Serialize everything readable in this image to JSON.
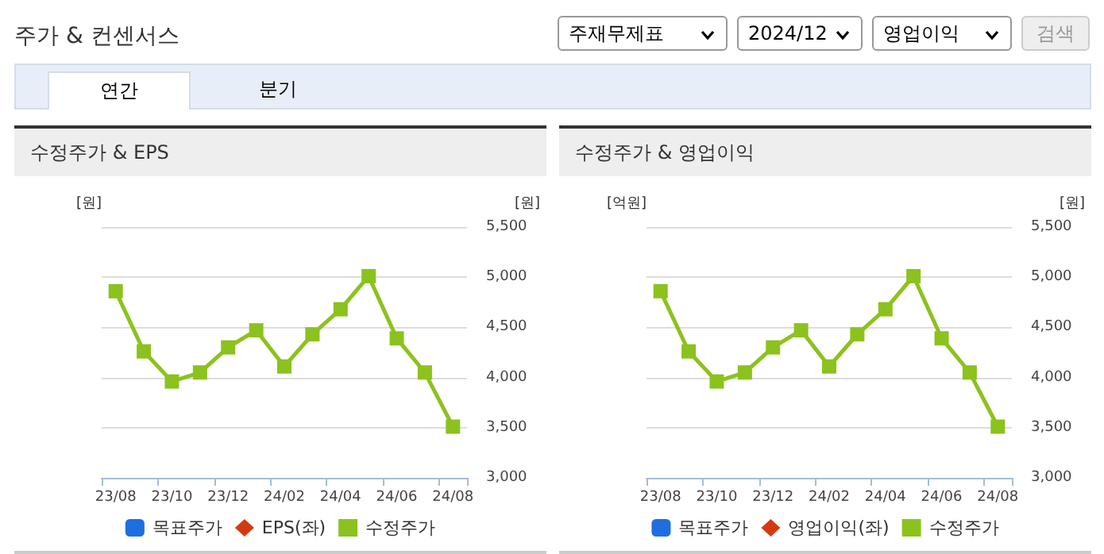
{
  "chart_data": [
    {
      "type": "other",
      "title": "주가 & 컨센서스",
      "annotations": [
        "주재무제표",
        "2024/12",
        "영업이익",
        "검색",
        "연간",
        "분기"
      ]
    },
    {
      "type": "line",
      "title": "수정주가 & EPS",
      "ylabel": "[원]",
      "y2label": "[원]",
      "categories": [
        "23/08",
        null,
        "23/10",
        null,
        "23/12",
        null,
        "24/02",
        null,
        "24/04",
        null,
        "24/06",
        null,
        "24/08"
      ],
      "y2lim": [
        3000,
        5500
      ],
      "y2ticks": [
        {
          "value": 3000,
          "label": "3,000"
        },
        {
          "value": 3500,
          "label": "3,500"
        },
        {
          "value": 4000,
          "label": "4,000"
        },
        {
          "value": 4500,
          "label": "4,500"
        },
        {
          "value": 5000,
          "label": "5,000"
        },
        {
          "value": 5500,
          "label": "5,500"
        }
      ],
      "grid": "y",
      "legend": "bottom",
      "series": [
        {
          "name": "목표주가",
          "type": "bar",
          "color": "#1f6ee0",
          "values": [
            null,
            null,
            null,
            null,
            null,
            null,
            null,
            null,
            null,
            null,
            null,
            null,
            null
          ]
        },
        {
          "name": "EPS(좌)",
          "type": "line",
          "marker": "diamond",
          "color": "#d43a10",
          "values": [
            null,
            null,
            null,
            null,
            null,
            null,
            null,
            null,
            null,
            null,
            null,
            null,
            null
          ]
        },
        {
          "name": "수정주가",
          "type": "line",
          "marker": "square",
          "axis": "y2",
          "color": "#8cc21e",
          "values": [
            4860,
            4260,
            3960,
            4050,
            4300,
            4470,
            4110,
            4430,
            4680,
            5010,
            4390,
            4050,
            3510
          ]
        }
      ]
    },
    {
      "type": "line",
      "title": "수정주가 & 영업이익",
      "ylabel": "[억원]",
      "y2label": "[원]",
      "categories": [
        "23/08",
        null,
        "23/10",
        null,
        "23/12",
        null,
        "24/02",
        null,
        "24/04",
        null,
        "24/06",
        null,
        "24/08"
      ],
      "y2lim": [
        3000,
        5500
      ],
      "y2ticks": [
        {
          "value": 3000,
          "label": "3,000"
        },
        {
          "value": 3500,
          "label": "3,500"
        },
        {
          "value": 4000,
          "label": "4,000"
        },
        {
          "value": 4500,
          "label": "4,500"
        },
        {
          "value": 5000,
          "label": "5,000"
        },
        {
          "value": 5500,
          "label": "5,500"
        }
      ],
      "grid": "y",
      "legend": "bottom",
      "series": [
        {
          "name": "목표주가",
          "type": "bar",
          "color": "#1f6ee0",
          "values": [
            null,
            null,
            null,
            null,
            null,
            null,
            null,
            null,
            null,
            null,
            null,
            null,
            null
          ]
        },
        {
          "name": "영업이익(좌)",
          "type": "line",
          "marker": "diamond",
          "color": "#d43a10",
          "values": [
            null,
            null,
            null,
            null,
            null,
            null,
            null,
            null,
            null,
            null,
            null,
            null,
            null
          ]
        },
        {
          "name": "수정주가",
          "type": "line",
          "marker": "square",
          "axis": "y2",
          "color": "#8cc21e",
          "values": [
            4860,
            4260,
            3960,
            4050,
            4300,
            4470,
            4110,
            4430,
            4680,
            5010,
            4390,
            4050,
            3510
          ]
        }
      ]
    }
  ]
}
